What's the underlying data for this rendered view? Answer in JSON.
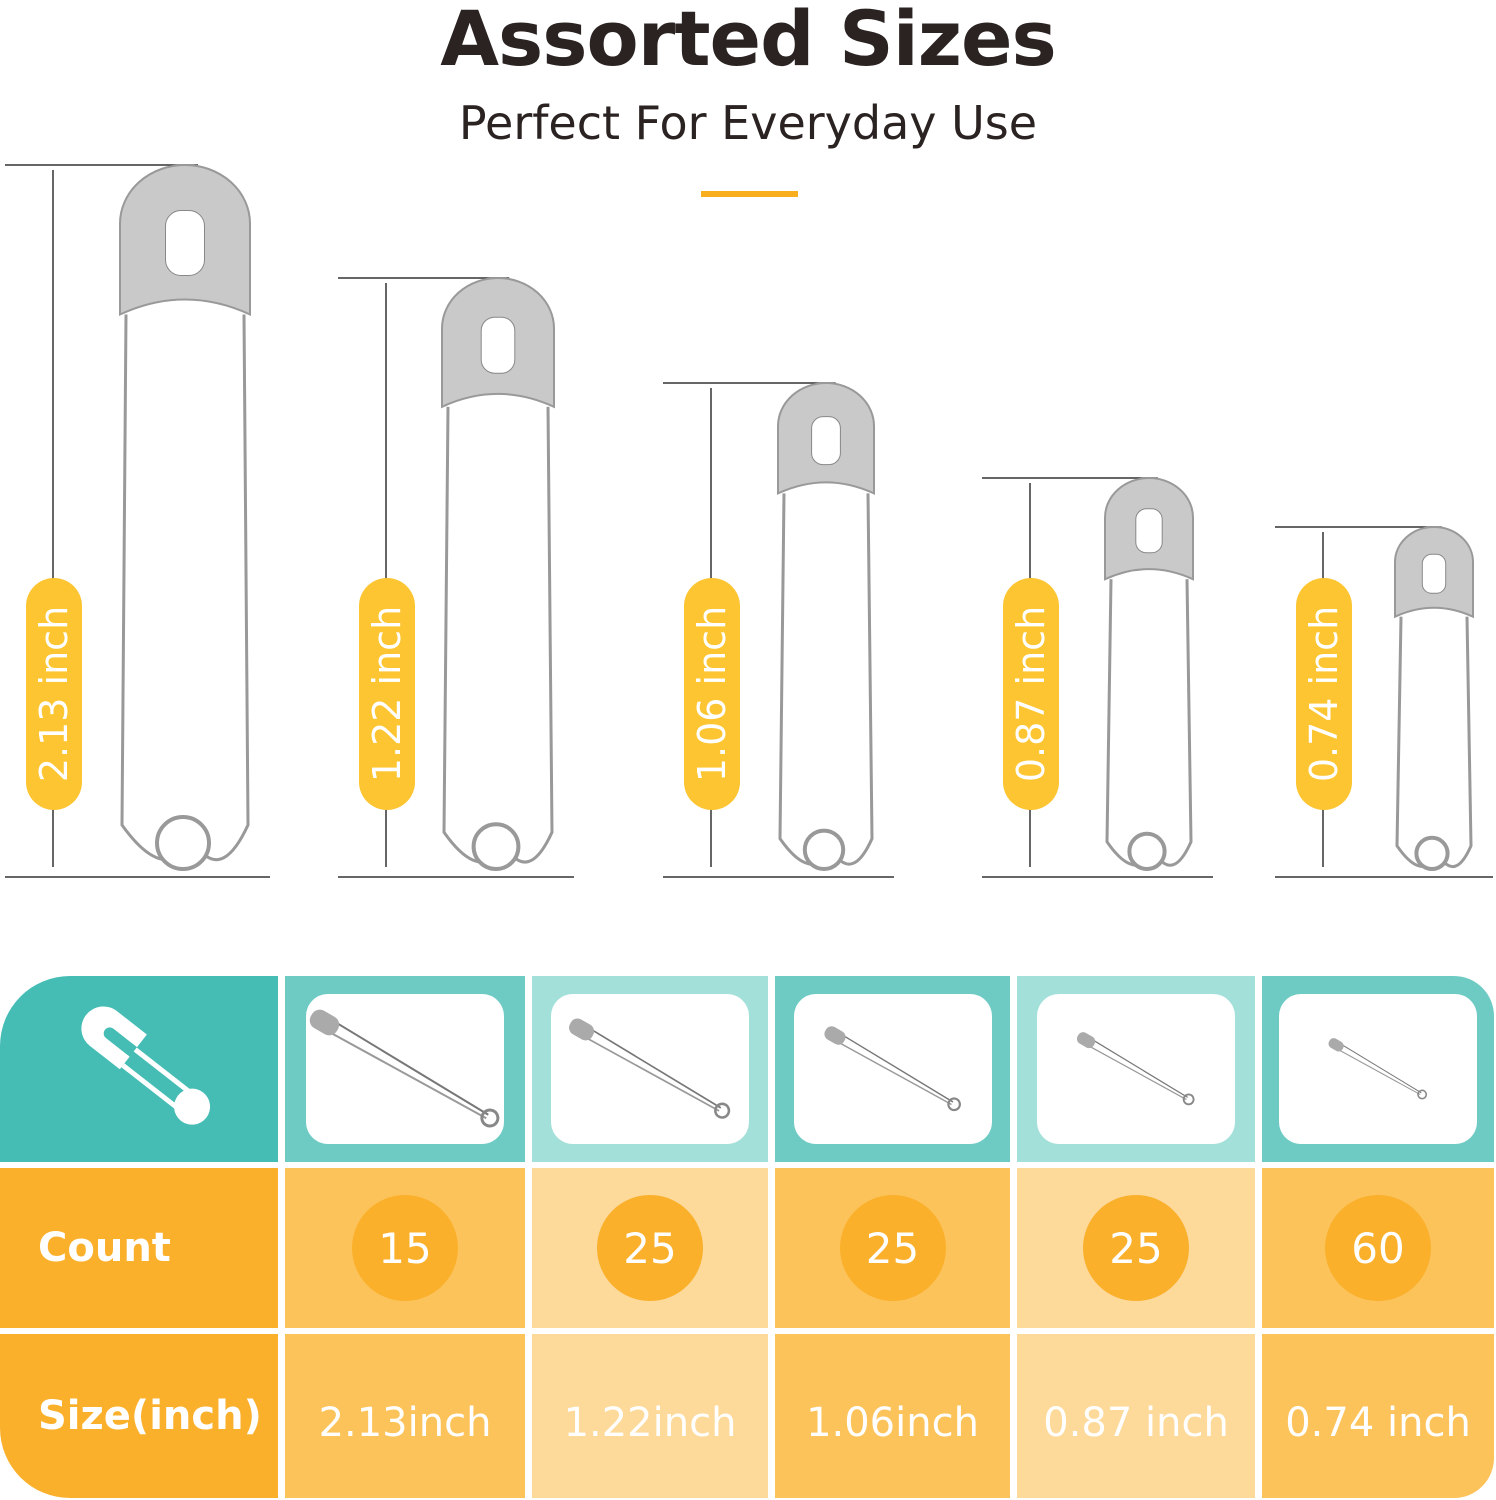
{
  "header": {
    "title": "Assorted Sizes",
    "subtitle": "Perfect For Everyday Use"
  },
  "colors": {
    "accent": "#f9ae1d",
    "pill": "#fcc531",
    "teal_dark": "#45bdb5",
    "teal_mid": "#6ecbc4",
    "teal_light": "#a4e0da",
    "orange_dark": "#fbb02c",
    "orange_mid": "#fcc35b",
    "orange_light": "#fdd99a"
  },
  "pins": [
    {
      "label": "2.13 inch"
    },
    {
      "label": "1.22 inch"
    },
    {
      "label": "1.06 inch"
    },
    {
      "label": "0.87 inch"
    },
    {
      "label": "0.74 inch"
    }
  ],
  "table": {
    "header_icon": "safety-pin-icon",
    "row_labels": {
      "count": "Count",
      "size": "Size(inch)"
    },
    "columns": [
      {
        "count": "15",
        "size": "2.13inch"
      },
      {
        "count": "25",
        "size": "1.22inch"
      },
      {
        "count": "25",
        "size": "1.06inch"
      },
      {
        "count": "25",
        "size": "0.87 inch"
      },
      {
        "count": "60",
        "size": "0.74 inch"
      }
    ]
  }
}
